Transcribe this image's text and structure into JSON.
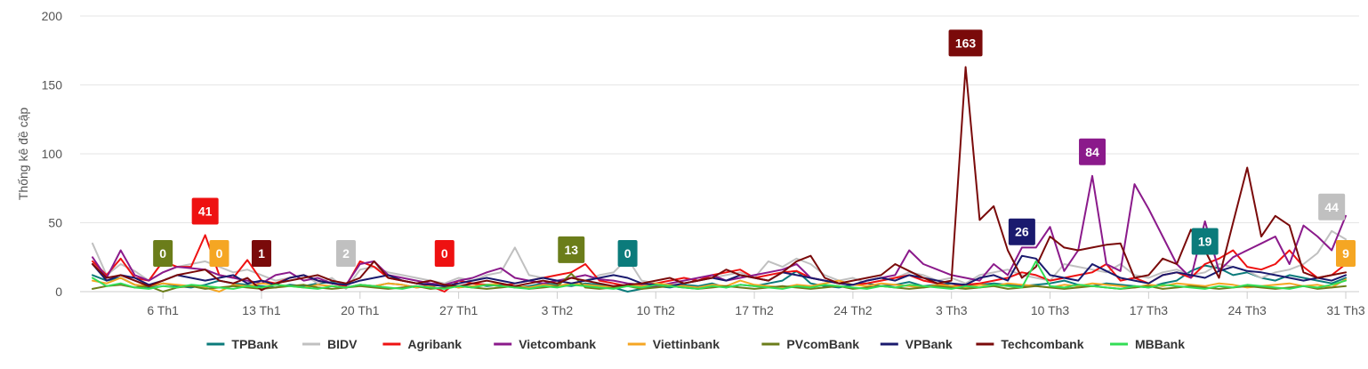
{
  "chart_data": {
    "type": "line",
    "ylabel": "Thống kê đề cập",
    "ylim": [
      0,
      200
    ],
    "y_ticks": [
      "0",
      "50",
      "100",
      "150",
      "200"
    ],
    "x_ticks": [
      {
        "label": "6 Th1",
        "day": 6
      },
      {
        "label": "13 Th1",
        "day": 13
      },
      {
        "label": "20 Th1",
        "day": 20
      },
      {
        "label": "27 Th1",
        "day": 27
      },
      {
        "label": "3 Th2",
        "day": 34
      },
      {
        "label": "10 Th2",
        "day": 41
      },
      {
        "label": "17 Th2",
        "day": 48
      },
      {
        "label": "24 Th2",
        "day": 55
      },
      {
        "label": "3 Th3",
        "day": 62
      },
      {
        "label": "10 Th3",
        "day": 69
      },
      {
        "label": "17 Th3",
        "day": 76
      },
      {
        "label": "24 Th3",
        "day": 83
      },
      {
        "label": "31 Th3",
        "day": 90
      }
    ],
    "x_range": [
      1,
      90
    ],
    "grid": "horizontal",
    "legend_position": "bottom",
    "series": [
      {
        "name": "TPBank",
        "color": "#0b7b7b",
        "values": [
          12,
          8,
          10,
          5,
          3,
          6,
          4,
          3,
          5,
          8,
          6,
          5,
          4,
          3,
          5,
          4,
          6,
          7,
          3,
          5,
          4,
          6,
          5,
          3,
          4,
          5,
          3,
          6,
          4,
          5,
          3,
          4,
          6,
          5,
          4,
          6,
          5,
          3,
          0,
          2,
          4,
          3,
          5,
          4,
          6,
          3,
          5,
          4,
          6,
          8,
          15,
          6,
          4,
          3,
          5,
          6,
          4,
          5,
          7,
          4,
          5,
          6,
          4,
          5,
          6,
          5,
          4,
          5,
          6,
          8,
          5,
          4,
          6,
          5,
          4,
          3,
          6,
          8,
          15,
          19,
          17,
          12,
          14,
          10,
          8,
          12,
          10,
          8,
          6,
          10
        ]
      },
      {
        "name": "BIDV",
        "color": "#c0c0c0",
        "values": [
          35,
          12,
          20,
          15,
          8,
          14,
          18,
          20,
          22,
          18,
          14,
          16,
          12,
          8,
          10,
          12,
          6,
          10,
          2,
          16,
          18,
          14,
          12,
          10,
          8,
          6,
          10,
          8,
          12,
          14,
          32,
          12,
          10,
          8,
          6,
          8,
          12,
          14,
          24,
          8,
          6,
          5,
          6,
          8,
          10,
          12,
          14,
          10,
          22,
          18,
          24,
          20,
          12,
          8,
          10,
          6,
          8,
          10,
          14,
          12,
          8,
          10,
          6,
          12,
          14,
          16,
          12,
          10,
          8,
          20,
          18,
          16,
          14,
          20,
          12,
          10,
          14,
          16,
          12,
          14,
          20,
          18,
          15,
          10,
          14,
          16,
          20,
          28,
          44,
          38
        ]
      },
      {
        "name": "Agribank",
        "color": "#ee1111",
        "values": [
          22,
          12,
          24,
          10,
          8,
          22,
          18,
          18,
          41,
          12,
          10,
          23,
          8,
          6,
          10,
          12,
          8,
          6,
          4,
          22,
          18,
          10,
          8,
          6,
          4,
          0,
          8,
          6,
          5,
          4,
          6,
          8,
          10,
          12,
          14,
          20,
          8,
          6,
          4,
          5,
          6,
          8,
          10,
          8,
          12,
          14,
          16,
          10,
          12,
          14,
          15,
          10,
          8,
          6,
          5,
          6,
          8,
          10,
          12,
          8,
          6,
          4,
          5,
          6,
          8,
          10,
          14,
          12,
          8,
          10,
          12,
          14,
          20,
          8,
          10,
          6,
          12,
          14,
          10,
          20,
          24,
          30,
          18,
          16,
          20,
          30,
          18,
          10,
          12,
          20
        ]
      },
      {
        "name": "Vietcombank",
        "color": "#8b1a8b",
        "values": [
          25,
          10,
          30,
          12,
          8,
          14,
          18,
          17,
          16,
          12,
          10,
          8,
          6,
          12,
          14,
          8,
          10,
          6,
          5,
          20,
          22,
          12,
          10,
          8,
          6,
          5,
          8,
          10,
          14,
          17,
          10,
          8,
          6,
          8,
          10,
          12,
          9,
          8,
          6,
          5,
          4,
          6,
          8,
          10,
          12,
          8,
          10,
          12,
          14,
          16,
          20,
          10,
          8,
          6,
          5,
          8,
          10,
          12,
          30,
          20,
          16,
          12,
          10,
          8,
          20,
          12,
          32,
          32,
          47,
          15,
          30,
          84,
          20,
          15,
          78,
          60,
          40,
          20,
          10,
          51,
          15,
          25,
          30,
          35,
          40,
          20,
          48,
          40,
          30,
          55
        ]
      },
      {
        "name": "Viettinbank",
        "color": "#f5a623",
        "values": [
          8,
          6,
          10,
          5,
          4,
          6,
          5,
          4,
          3,
          0,
          5,
          4,
          6,
          5,
          4,
          3,
          5,
          4,
          3,
          5,
          4,
          6,
          5,
          3,
          4,
          5,
          3,
          4,
          5,
          6,
          4,
          3,
          5,
          4,
          6,
          5,
          4,
          3,
          5,
          4,
          6,
          5,
          4,
          3,
          5,
          4,
          8,
          5,
          4,
          3,
          5,
          4,
          6,
          8,
          5,
          4,
          6,
          5,
          4,
          3,
          5,
          4,
          3,
          5,
          4,
          6,
          5,
          4,
          3,
          5,
          4,
          6,
          5,
          4,
          3,
          5,
          4,
          6,
          5,
          4,
          6,
          5,
          3,
          4,
          5,
          6,
          4,
          5,
          3,
          9
        ]
      },
      {
        "name": "PVcomBank",
        "color": "#6b7d1a",
        "values": [
          2,
          4,
          5,
          3,
          4,
          0,
          3,
          4,
          2,
          3,
          4,
          3,
          2,
          3,
          4,
          5,
          3,
          2,
          3,
          4,
          3,
          2,
          3,
          4,
          2,
          3,
          4,
          3,
          2,
          3,
          4,
          2,
          3,
          4,
          13,
          3,
          2,
          3,
          4,
          2,
          3,
          4,
          3,
          2,
          3,
          4,
          3,
          2,
          3,
          4,
          3,
          2,
          3,
          4,
          2,
          3,
          4,
          3,
          2,
          3,
          4,
          3,
          2,
          3,
          4,
          2,
          3,
          4,
          3,
          2,
          3,
          4,
          3,
          2,
          3,
          4,
          2,
          3,
          4,
          3,
          2,
          3,
          4,
          3,
          2,
          3,
          4,
          2,
          3,
          4
        ]
      },
      {
        "name": "VPBank",
        "color": "#1a1a6e",
        "values": [
          20,
          8,
          12,
          10,
          5,
          8,
          12,
          10,
          8,
          10,
          12,
          6,
          8,
          5,
          10,
          12,
          8,
          6,
          5,
          8,
          10,
          12,
          8,
          6,
          5,
          4,
          6,
          8,
          10,
          8,
          6,
          8,
          10,
          8,
          6,
          8,
          10,
          12,
          10,
          6,
          5,
          4,
          6,
          8,
          10,
          8,
          12,
          10,
          8,
          14,
          12,
          10,
          8,
          6,
          5,
          8,
          10,
          8,
          12,
          10,
          8,
          6,
          5,
          10,
          12,
          8,
          26,
          24,
          12,
          10,
          8,
          20,
          15,
          10,
          8,
          6,
          12,
          14,
          12,
          10,
          15,
          18,
          15,
          14,
          12,
          10,
          8,
          10,
          8,
          12
        ]
      },
      {
        "name": "Techcombank",
        "color": "#7a0a0a",
        "values": [
          20,
          10,
          12,
          8,
          4,
          8,
          12,
          14,
          16,
          8,
          6,
          10,
          1,
          6,
          8,
          10,
          12,
          8,
          6,
          10,
          22,
          10,
          8,
          6,
          8,
          5,
          4,
          6,
          8,
          6,
          4,
          6,
          8,
          6,
          10,
          8,
          6,
          4,
          5,
          6,
          8,
          10,
          6,
          8,
          10,
          16,
          12,
          10,
          8,
          14,
          22,
          26,
          10,
          6,
          8,
          10,
          12,
          20,
          15,
          10,
          6,
          8,
          163,
          52,
          62,
          30,
          10,
          18,
          40,
          32,
          30,
          32,
          34,
          35,
          10,
          12,
          24,
          20,
          45,
          30,
          10,
          50,
          90,
          40,
          55,
          48,
          14,
          10,
          12,
          14
        ]
      },
      {
        "name": "MBBank",
        "color": "#33dd55",
        "values": [
          10,
          4,
          6,
          3,
          2,
          4,
          3,
          5,
          4,
          3,
          2,
          4,
          3,
          5,
          4,
          3,
          2,
          4,
          3,
          5,
          4,
          3,
          2,
          4,
          3,
          2,
          4,
          3,
          5,
          4,
          3,
          2,
          4,
          3,
          5,
          4,
          3,
          2,
          4,
          3,
          5,
          4,
          3,
          2,
          4,
          3,
          5,
          4,
          3,
          2,
          4,
          3,
          5,
          4,
          3,
          2,
          4,
          3,
          5,
          4,
          3,
          2,
          4,
          3,
          5,
          4,
          3,
          22,
          4,
          3,
          5,
          4,
          3,
          2,
          4,
          3,
          5,
          4,
          3,
          2,
          4,
          3,
          5,
          4,
          3,
          2,
          4,
          3,
          5,
          8
        ]
      }
    ],
    "annotations": [
      {
        "label": "0",
        "series": "PVcomBank",
        "day": 6,
        "value": 0
      },
      {
        "label": "41",
        "series": "Agribank",
        "day": 9,
        "value": 41
      },
      {
        "label": "0",
        "series": "Viettinbank",
        "day": 10,
        "value": 0
      },
      {
        "label": "1",
        "series": "Techcombank",
        "day": 13,
        "value": 1
      },
      {
        "label": "2",
        "series": "BIDV",
        "day": 19,
        "value": 2
      },
      {
        "label": "0",
        "series": "Agribank",
        "day": 26,
        "value": 0
      },
      {
        "label": "13",
        "series": "PVcomBank",
        "day": 35,
        "value": 13
      },
      {
        "label": "0",
        "series": "TPBank",
        "day": 39,
        "value": 0
      },
      {
        "label": "163",
        "series": "Techcombank",
        "day": 63,
        "value": 163
      },
      {
        "label": "84",
        "series": "Vietcombank",
        "day": 72,
        "value": 84
      },
      {
        "label": "26",
        "series": "VPBank",
        "day": 67,
        "value": 26
      },
      {
        "label": "19",
        "series": "TPBank",
        "day": 80,
        "value": 19
      },
      {
        "label": "44",
        "series": "BIDV",
        "day": 89,
        "value": 44
      },
      {
        "label": "9",
        "series": "Viettinbank",
        "day": 90,
        "value": 9
      }
    ]
  }
}
